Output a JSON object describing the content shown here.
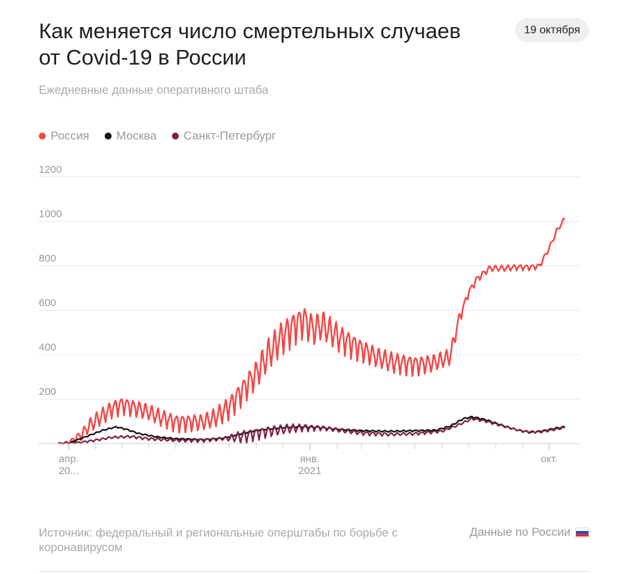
{
  "header": {
    "title": "Как меняется число смертельных случаев от Covid-19 в России",
    "date_badge": "19 октября",
    "subtitle": "Ежедневные данные оперативного штаба"
  },
  "legend": [
    {
      "label": "Россия",
      "color": "#f44646"
    },
    {
      "label": "Москва",
      "color": "#111111"
    },
    {
      "label": "Санкт-Петербург",
      "color": "#7d2147"
    }
  ],
  "footer": {
    "source": "Источник: федеральный и региональные оперштабы по борьбе с коронавирусом",
    "link": "Данные по России",
    "flag_icon": "russia-flag-icon"
  },
  "chart_data": {
    "type": "line",
    "x_range": [
      "2020-03-20",
      "2021-10-19"
    ],
    "ylim": [
      0,
      1200
    ],
    "yticks": [
      200,
      400,
      600,
      800,
      1000,
      1200
    ],
    "xticks": [
      {
        "date": "2020-04-01",
        "lines": [
          "апр.",
          "20..."
        ]
      },
      {
        "date": "2021-01-01",
        "lines": [
          "янв.",
          "2021"
        ]
      },
      {
        "date": "2021-10-01",
        "lines": [
          "окт.",
          ""
        ]
      }
    ],
    "grid": true,
    "series": [
      {
        "name": "Россия",
        "color": "#f44646",
        "points": [
          [
            "2020-03-20",
            0
          ],
          [
            "2020-04-01",
            5
          ],
          [
            "2020-04-15",
            40
          ],
          [
            "2020-04-25",
            85
          ],
          [
            "2020-05-10",
            130
          ],
          [
            "2020-05-20",
            160
          ],
          [
            "2020-06-01",
            180
          ],
          [
            "2020-06-15",
            165
          ],
          [
            "2020-07-01",
            145
          ],
          [
            "2020-07-15",
            120
          ],
          [
            "2020-08-01",
            100
          ],
          [
            "2020-08-15",
            100
          ],
          [
            "2020-09-01",
            100
          ],
          [
            "2020-09-15",
            120
          ],
          [
            "2020-10-01",
            170
          ],
          [
            "2020-10-15",
            240
          ],
          [
            "2020-11-01",
            320
          ],
          [
            "2020-11-15",
            410
          ],
          [
            "2020-12-01",
            490
          ],
          [
            "2020-12-15",
            540
          ],
          [
            "2020-12-25",
            565
          ],
          [
            "2021-01-05",
            520
          ],
          [
            "2021-01-15",
            540
          ],
          [
            "2021-01-25",
            510
          ],
          [
            "2021-02-05",
            480
          ],
          [
            "2021-02-20",
            450
          ],
          [
            "2021-03-05",
            420
          ],
          [
            "2021-03-20",
            390
          ],
          [
            "2021-04-05",
            370
          ],
          [
            "2021-04-20",
            365
          ],
          [
            "2021-05-05",
            360
          ],
          [
            "2021-05-20",
            365
          ],
          [
            "2021-06-01",
            380
          ],
          [
            "2021-06-10",
            395
          ],
          [
            "2021-06-20",
            560
          ],
          [
            "2021-07-01",
            680
          ],
          [
            "2021-07-10",
            740
          ],
          [
            "2021-07-25",
            790
          ],
          [
            "2021-08-10",
            790
          ],
          [
            "2021-08-25",
            795
          ],
          [
            "2021-09-10",
            795
          ],
          [
            "2021-09-20",
            800
          ],
          [
            "2021-10-01",
            880
          ],
          [
            "2021-10-10",
            960
          ],
          [
            "2021-10-19",
            1015
          ]
        ],
        "weekly_amplitude": [
          [
            "2020-03-20",
            0
          ],
          [
            "2020-05-01",
            30
          ],
          [
            "2020-09-01",
            30
          ],
          [
            "2020-10-15",
            45
          ],
          [
            "2020-11-15",
            60
          ],
          [
            "2021-01-15",
            55
          ],
          [
            "2021-03-01",
            40
          ],
          [
            "2021-06-10",
            30
          ],
          [
            "2021-07-01",
            12
          ],
          [
            "2021-10-19",
            8
          ]
        ]
      },
      {
        "name": "Москва",
        "color": "#111111",
        "points": [
          [
            "2020-03-20",
            0
          ],
          [
            "2020-04-01",
            2
          ],
          [
            "2020-04-20",
            30
          ],
          [
            "2020-05-10",
            60
          ],
          [
            "2020-05-25",
            75
          ],
          [
            "2020-06-05",
            65
          ],
          [
            "2020-06-20",
            45
          ],
          [
            "2020-07-10",
            30
          ],
          [
            "2020-08-01",
            22
          ],
          [
            "2020-09-01",
            18
          ],
          [
            "2020-09-25",
            25
          ],
          [
            "2020-10-15",
            45
          ],
          [
            "2020-11-01",
            60
          ],
          [
            "2020-12-01",
            72
          ],
          [
            "2020-12-20",
            76
          ],
          [
            "2021-01-10",
            73
          ],
          [
            "2021-02-01",
            65
          ],
          [
            "2021-03-01",
            58
          ],
          [
            "2021-04-01",
            55
          ],
          [
            "2021-05-01",
            58
          ],
          [
            "2021-05-25",
            60
          ],
          [
            "2021-06-10",
            78
          ],
          [
            "2021-06-25",
            112
          ],
          [
            "2021-07-05",
            120
          ],
          [
            "2021-07-20",
            108
          ],
          [
            "2021-08-10",
            80
          ],
          [
            "2021-08-25",
            62
          ],
          [
            "2021-09-10",
            50
          ],
          [
            "2021-09-25",
            58
          ],
          [
            "2021-10-10",
            70
          ],
          [
            "2021-10-19",
            75
          ]
        ],
        "weekly_amplitude": [
          [
            "2020-03-20",
            2
          ],
          [
            "2021-10-19",
            3
          ]
        ]
      },
      {
        "name": "Санкт-Петербург",
        "color": "#7d2147",
        "points": [
          [
            "2020-03-20",
            0
          ],
          [
            "2020-04-10",
            3
          ],
          [
            "2020-05-01",
            15
          ],
          [
            "2020-05-20",
            28
          ],
          [
            "2020-06-10",
            32
          ],
          [
            "2020-07-01",
            22
          ],
          [
            "2020-08-01",
            15
          ],
          [
            "2020-09-01",
            15
          ],
          [
            "2020-10-01",
            25
          ],
          [
            "2020-10-20",
            38
          ],
          [
            "2020-11-10",
            55
          ],
          [
            "2020-12-05",
            68
          ],
          [
            "2020-12-25",
            74
          ],
          [
            "2021-01-15",
            72
          ],
          [
            "2021-02-05",
            60
          ],
          [
            "2021-03-01",
            48
          ],
          [
            "2021-04-01",
            42
          ],
          [
            "2021-05-01",
            45
          ],
          [
            "2021-06-01",
            56
          ],
          [
            "2021-06-20",
            85
          ],
          [
            "2021-07-05",
            112
          ],
          [
            "2021-07-20",
            102
          ],
          [
            "2021-08-10",
            78
          ],
          [
            "2021-09-01",
            55
          ],
          [
            "2021-09-20",
            52
          ],
          [
            "2021-10-05",
            62
          ],
          [
            "2021-10-19",
            72
          ]
        ],
        "weekly_amplitude": [
          [
            "2020-03-20",
            3
          ],
          [
            "2020-09-25",
            6
          ],
          [
            "2020-10-15",
            22
          ],
          [
            "2020-12-01",
            18
          ],
          [
            "2021-01-15",
            8
          ],
          [
            "2021-06-01",
            4
          ],
          [
            "2021-10-19",
            3
          ]
        ]
      }
    ]
  }
}
